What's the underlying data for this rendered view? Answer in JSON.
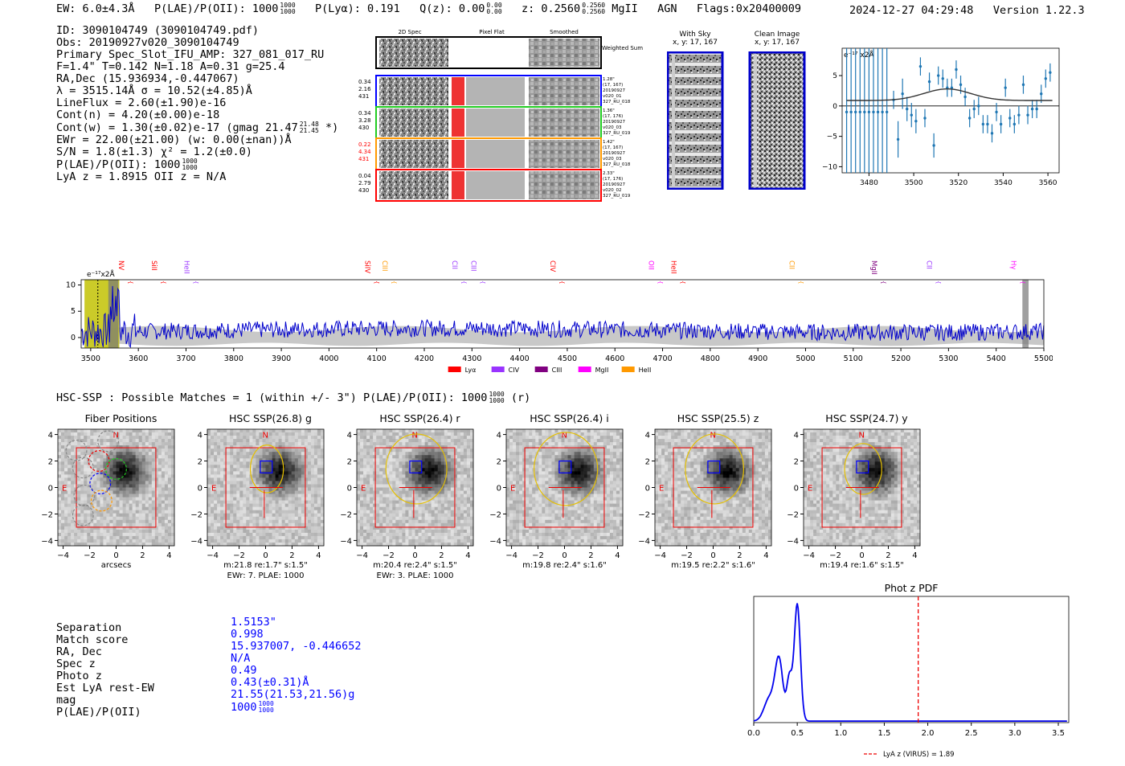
{
  "header": {
    "ew": "EW: 6.0±4.3Å",
    "plae_label": "P(LAE)/P(OII): 1000",
    "plae_hi": "1000",
    "plae_lo": "1000",
    "plya": "P(Lyα): 0.191",
    "qz_label": "Q(z): 0.00",
    "qz_hi": "0.00",
    "qz_lo": "0.00",
    "z_label": "z: 0.2560",
    "z_hi": "0.2560",
    "z_lo": "0.2560",
    "line": "MgII",
    "agn": "AGN",
    "flags": "Flags:0x20400009",
    "timestamp": "2024-12-27 04:29:48",
    "version": "Version 1.22.3"
  },
  "info_lines": [
    "ID: 3090104749 (3090104749.pdf)",
    "Obs: 20190927v020_3090104749",
    "Primary Spec_Slot_IFU_AMP: 327_081_017_RU",
    "F=1.4\"  T=0.142  N=1.18  A=0.31  g=25.4",
    "RA,Dec (15.936934,-0.447067)",
    "λ = 3515.14Å   σ = 10.52(±4.85)Å",
    "LineFlux = 2.60(±1.90)e-16",
    "Cont(n) = 4.20(±0.00)e-18",
    "Cont(w) = 1.30(±0.02)e-17 (gmag 21.47",
    "EWr = 22.00(±21.00) (w: 0.00(±nan))Å",
    "S/N = 1.8(±1.3)  χ² = 1.2(±0.0)",
    "P(LAE)/P(OII): 1000",
    "LyA z = 1.8915   OII z = N/A"
  ],
  "info_extras": {
    "gmag_hi": "21.48",
    "gmag_lo": "21.45",
    "gmag_tail": " *)",
    "plae_hi": "1000",
    "plae_lo": "1000"
  },
  "cutouts": {
    "headers": [
      "2D Spec",
      "Pixel Flat",
      "Smoothed"
    ],
    "weighted_sum": "Weighted Sum",
    "rows": [
      {
        "left": [
          "0.34",
          "2.16",
          "431"
        ],
        "right": [
          "1.28\"",
          "(17, 167)",
          "20190927",
          "v020_01",
          "327_RU_018"
        ],
        "color": "#0000ff",
        "left_color": "#000000"
      },
      {
        "left": [
          "0.34",
          "3.28",
          "430"
        ],
        "right": [
          "1.36\"",
          "(17, 176)",
          "20190927",
          "v020_03",
          "327_RU_019"
        ],
        "color": "#22cc22",
        "left_color": "#000000"
      },
      {
        "left": [
          "0.22",
          "4.34",
          "431"
        ],
        "right": [
          "1.42\"",
          "(17, 167)",
          "20190927",
          "v020_03",
          "327_RU_018"
        ],
        "color": "#ff9900",
        "left_color": "#ff0000"
      },
      {
        "left": [
          "0.04",
          "2.79",
          "430"
        ],
        "right": [
          "2.33\"",
          "(17, 176)",
          "20190927",
          "v020_02",
          "327_RU_019"
        ],
        "color": "#ff0000",
        "left_color": "#000000"
      }
    ]
  },
  "sky": {
    "with_sky_title": "With Sky",
    "with_sky_coords": "x, y: 17, 167",
    "clean_title": "Clean Image",
    "clean_coords": "x, y: 17, 167"
  },
  "zoom_plot": {
    "label": "e⁻¹⁷ x2Å",
    "xticks": [
      "3480",
      "3500",
      "3520",
      "3540",
      "3560"
    ],
    "yticks": [
      "5",
      "0",
      "−5",
      "−10"
    ]
  },
  "spectrum": {
    "ylabel_top": "e⁻¹⁷x2Å",
    "yticks": [
      "10",
      "5",
      "0"
    ],
    "xticks": [
      "3500",
      "3600",
      "3700",
      "3800",
      "3900",
      "4000",
      "4100",
      "4200",
      "4300",
      "4400",
      "4500",
      "4600",
      "4700",
      "4800",
      "4900",
      "5000",
      "5100",
      "5200",
      "5300",
      "5400",
      "5500"
    ],
    "lines": [
      {
        "name": "NV",
        "color": "#ff0000",
        "wl": 3583
      },
      {
        "name": "SiII",
        "color": "#ff0000",
        "wl": 3652
      },
      {
        "name": "HeII",
        "color": "#9933ff",
        "wl": 3720
      },
      {
        "name": "SiIV",
        "color": "#ff0000",
        "wl": 4100
      },
      {
        "name": "CIII",
        "color": "#ff9900",
        "wl": 4136
      },
      {
        "name": "CII",
        "color": "#9933ff",
        "wl": 4283
      },
      {
        "name": "CIII",
        "color": "#9933ff",
        "wl": 4322
      },
      {
        "name": "CIV",
        "color": "#ff0000",
        "wl": 4488
      },
      {
        "name": "OII",
        "color": "#ff00ff",
        "wl": 4695
      },
      {
        "name": "HeII",
        "color": "#ff0000",
        "wl": 4742
      },
      {
        "name": "CII",
        "color": "#ff9900",
        "wl": 4990
      },
      {
        "name": "MgII",
        "color": "#800080",
        "wl": 5163
      },
      {
        "name": "CII",
        "color": "#9933ff",
        "wl": 5278
      },
      {
        "name": "Hγ",
        "color": "#ff00ff",
        "wl": 5455
      }
    ],
    "legend": [
      {
        "name": "Lyα",
        "color": "#ff0000"
      },
      {
        "name": "CIV",
        "color": "#9933ff"
      },
      {
        "name": "CIII",
        "color": "#800080"
      },
      {
        "name": "MgII",
        "color": "#ff00ff"
      },
      {
        "name": "HeII",
        "color": "#ff9900"
      }
    ]
  },
  "hsc": {
    "summary": "HSC-SSP : Possible Matches = 1 (within +/- 3\")  P(LAE)/P(OII): 1000",
    "summary_hi": "1000",
    "summary_lo": "1000",
    "summary_tail": "(r)",
    "panels": [
      {
        "title": "Fiber Positions",
        "cap1": "arcsecs",
        "cap2": ""
      },
      {
        "title": "HSC SSP(26.8) g",
        "cap1": "m:21.8  re:1.7\"  s:1.5\"",
        "cap2": "EWr: 7. PLAE: 1000"
      },
      {
        "title": "HSC SSP(26.4) r",
        "cap1": "m:20.4  re:2.4\"  s:1.5\"",
        "cap2": "EWr: 3. PLAE: 1000"
      },
      {
        "title": "HSC SSP(26.4) i",
        "cap1": "m:19.8  re:2.4\"  s:1.6\"",
        "cap2": ""
      },
      {
        "title": "HSC SSP(25.5) z",
        "cap1": "m:19.5  re:2.2\"  s:1.6\"",
        "cap2": ""
      },
      {
        "title": "HSC SSP(24.7) y",
        "cap1": "m:19.4  re:1.6\"  s:1.5\"",
        "cap2": ""
      }
    ],
    "xticks": [
      "−4",
      "−2",
      "0",
      "2",
      "4"
    ],
    "yticks": [
      "4",
      "2",
      "0",
      "−2",
      "−4"
    ]
  },
  "match": {
    "rows": [
      {
        "label": "Separation",
        "value": "1.5153\""
      },
      {
        "label": "Match score",
        "value": "0.998"
      },
      {
        "label": "RA, Dec",
        "value": "15.937007, -0.446652"
      },
      {
        "label": "Spec z",
        "value": "N/A"
      },
      {
        "label": "Photo z",
        "value": "0.49"
      },
      {
        "label": "Est LyA rest-EW",
        "value": "0.43(±0.31)Å"
      },
      {
        "label": "mag",
        "value": "21.55(21.53,21.56)g"
      },
      {
        "label": "P(LAE)/P(OII)",
        "value": "1000"
      }
    ],
    "plae_hi": "1000",
    "plae_lo": "1000"
  },
  "photz": {
    "title": "Phot z PDF",
    "xticks": [
      "0.0",
      "0.5",
      "1.0",
      "1.5",
      "2.0",
      "2.5",
      "3.0",
      "3.5"
    ],
    "legend": "LyA z (VIRUS) = 1.89",
    "lya_z": 1.89
  }
}
